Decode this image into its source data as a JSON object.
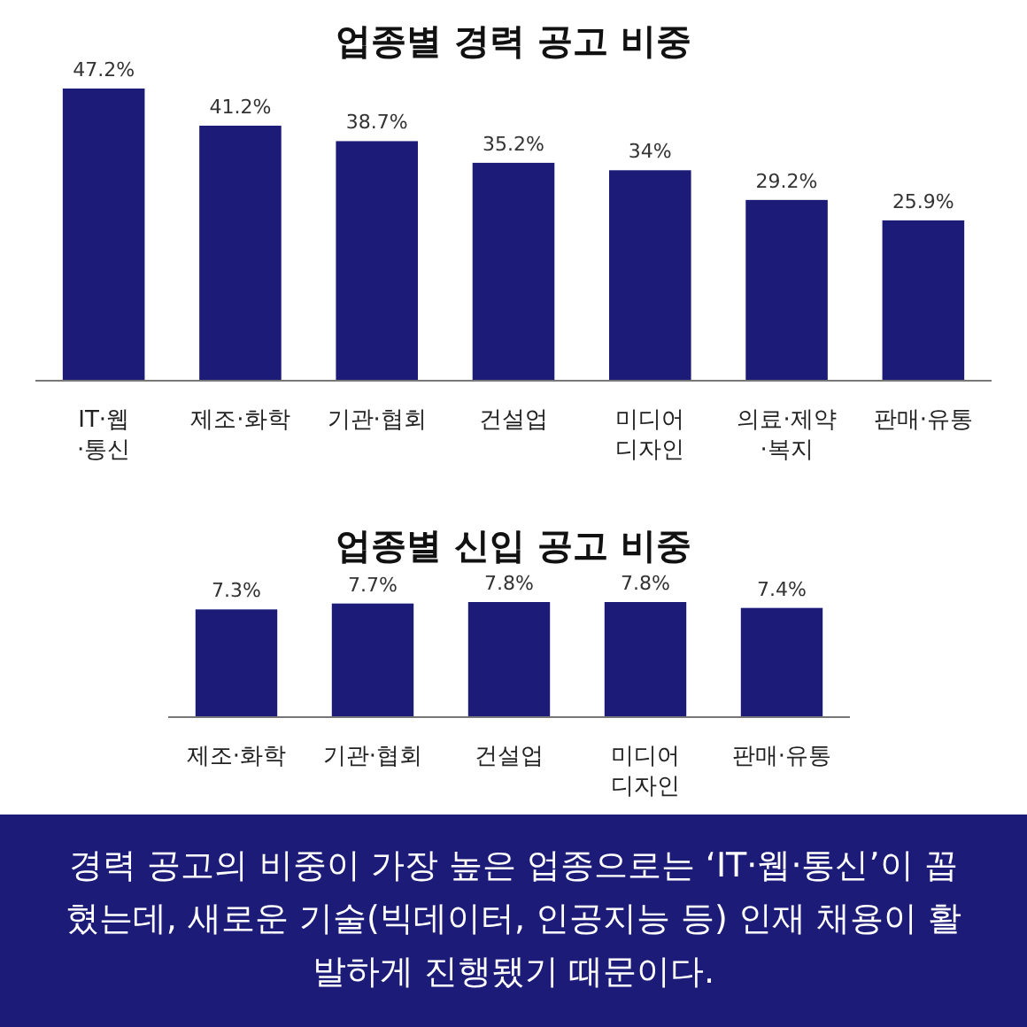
{
  "chart_data": [
    {
      "type": "bar",
      "title": "업종별 경력 공고 비중",
      "categories": [
        "IT·웹·통신",
        "제조·화학",
        "기관·협회",
        "건설업",
        "미디어 디자인",
        "의료·제약·복지",
        "판매·유통"
      ],
      "values": [
        47.2,
        41.2,
        38.7,
        35.2,
        34,
        29.2,
        25.9
      ],
      "value_labels": [
        "47.2%",
        "41.2%",
        "38.7%",
        "35.2%",
        "34%",
        "29.2%",
        "25.9%"
      ],
      "color": "#1c1c78"
    },
    {
      "type": "bar",
      "title": "업종별 신입 공고 비중",
      "categories": [
        "제조·화학",
        "기관·협회",
        "건설업",
        "미디어 디자인",
        "판매·유통"
      ],
      "values": [
        7.3,
        7.7,
        7.8,
        7.8,
        7.4
      ],
      "value_labels": [
        "7.3%",
        "7.7%",
        "7.8%",
        "7.8%",
        "7.4%"
      ],
      "color": "#1c1c78",
      "annotations": [
        "경력 공고의 비중이 가장 높은 업종으로는 ‘IT·웹·통신’이 꼽혔는데, 새로운 기술(빅데이터, 인공지능 등) 인재 채용이 활발하게 진행됐기 때문이다."
      ]
    }
  ]
}
